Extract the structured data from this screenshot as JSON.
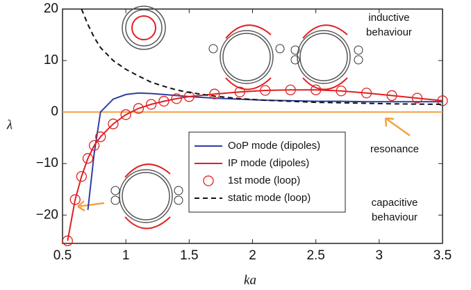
{
  "chart_data": {
    "type": "line",
    "xlabel": "ka",
    "ylabel": "λ",
    "x": [
      0.54,
      0.6,
      0.65,
      0.7,
      0.75,
      0.8,
      0.9,
      1.0,
      1.1,
      1.2,
      1.3,
      1.4,
      1.5,
      1.7,
      1.9,
      2.1,
      2.3,
      2.5,
      2.7,
      2.9,
      3.1,
      3.3,
      3.5
    ],
    "series": [
      {
        "name": "OoP mode (dipoles)",
        "color": "#2b3fa0",
        "style": "solid",
        "values": [
          null,
          null,
          null,
          -19,
          -8,
          0,
          2.5,
          3.4,
          3.7,
          3.6,
          3.4,
          3.2,
          3.0,
          2.7,
          2.5,
          2.3,
          2.2,
          2.1,
          2.1,
          2.0,
          2.0,
          2.0,
          2.0
        ]
      },
      {
        "name": "IP mode (dipoles)",
        "color": "#e02020",
        "style": "solid",
        "values": [
          -25,
          -17,
          -12.5,
          -9,
          -6.5,
          -4.8,
          -2.3,
          -0.5,
          0.7,
          1.5,
          2.1,
          2.6,
          3.0,
          3.5,
          3.9,
          4.2,
          4.3,
          4.3,
          4.1,
          3.7,
          3.2,
          2.7,
          2.2
        ]
      },
      {
        "name": "1st mode (loop)",
        "color": "#e02020",
        "style": "circle",
        "values": [
          -25,
          -17,
          -12.5,
          -9,
          -6.5,
          -4.8,
          -2.3,
          -0.5,
          0.7,
          1.5,
          2.1,
          2.6,
          3.0,
          3.5,
          3.9,
          4.2,
          4.3,
          4.3,
          4.1,
          3.7,
          3.2,
          2.7,
          2.2
        ]
      },
      {
        "name": "static mode (loop)",
        "color": "#111111",
        "style": "dashed",
        "values": [
          null,
          null,
          20,
          17,
          14.5,
          12.5,
          10,
          8.3,
          7,
          5.8,
          5,
          4.3,
          3.8,
          3.1,
          2.6,
          2.3,
          2.1,
          1.9,
          1.8,
          1.7,
          1.6,
          1.55,
          1.5
        ]
      }
    ],
    "reference_lines": [
      {
        "y": 0,
        "color": "#f5a142"
      }
    ],
    "annotations": [
      {
        "lines": [
          "inductive",
          "behaviour"
        ]
      },
      {
        "lines": [
          "resonance"
        ]
      },
      {
        "lines": [
          "capacitive",
          "behaviour"
        ]
      }
    ],
    "xlim": [
      0.5,
      3.5
    ],
    "xticks": [
      0.5,
      1,
      1.5,
      2,
      2.5,
      3,
      3.5
    ],
    "ylim": [
      -25.5,
      20
    ],
    "yticks": [
      {
        "value": -20,
        "label": "−20"
      },
      {
        "value": -10,
        "label": "−10"
      },
      0,
      10,
      20
    ],
    "legend": "lower right"
  }
}
